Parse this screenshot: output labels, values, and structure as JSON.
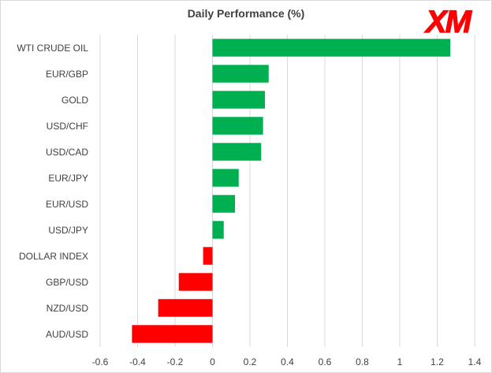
{
  "colors": {
    "positive": "#00b050",
    "negative": "#ff0000",
    "grid": "#d9d9d9",
    "label": "#404040"
  },
  "logo": {
    "text": "XM",
    "color": "#ff0000"
  },
  "chart_data": {
    "type": "bar",
    "orientation": "horizontal",
    "title": "Daily Performance  (%)",
    "xlabel": "",
    "ylabel": "",
    "categories": [
      "WTI CRUDE OIL",
      "EUR/GBP",
      "GOLD",
      "USD/CHF",
      "USD/CAD",
      "EUR/JPY",
      "EUR/USD",
      "USD/JPY",
      "DOLLAR INDEX",
      "GBP/USD",
      "NZD/USD",
      "AUD/USD"
    ],
    "values": [
      1.27,
      0.3,
      0.28,
      0.27,
      0.26,
      0.14,
      0.12,
      0.06,
      -0.05,
      -0.18,
      -0.29,
      -0.43
    ],
    "xlim": [
      -0.6,
      1.4
    ],
    "xticks": [
      -0.6,
      -0.4,
      -0.2,
      0,
      0.2,
      0.4,
      0.6,
      0.8,
      1,
      1.2,
      1.4
    ],
    "xtick_labels": [
      "-0.6",
      "-0.4",
      "-0.2",
      "0",
      "0.2",
      "0.4",
      "0.6",
      "0.8",
      "1",
      "1.2",
      "1.4"
    ],
    "grid": "vertical",
    "legend": "none"
  }
}
